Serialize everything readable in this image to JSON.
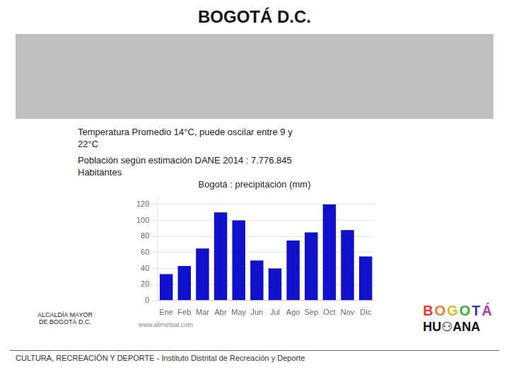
{
  "title": "BOGOTÁ D.C.",
  "annotations": [
    "Temperatura Promedio 14°C, puede oscilar entre 9 y",
    "22°C",
    "Población según estimación DANE 2014 : 7.776.845",
    "Habitantes",
    "ALCALDÍA MAYOR\nDE BOGOTÁ D.C.",
    "BOGOTÁ",
    "HU⚇ANA",
    "CULTURA, RECREACIÓN Y DEPORTE - Instituto Distrital de Recreación y Deporte"
  ],
  "chart_data": {
    "type": "bar",
    "title": "Bogotá : precipitación (mm)",
    "categories": [
      "Ene",
      "Feb",
      "Mar",
      "Abr",
      "May",
      "Jun",
      "Jul",
      "Ago",
      "Sep",
      "Oct",
      "Nov",
      "Dic"
    ],
    "values": [
      33,
      43,
      65,
      110,
      100,
      50,
      40,
      75,
      85,
      120,
      88,
      55
    ],
    "color": "#1111cc",
    "ylim": [
      0,
      130
    ],
    "yticks": [
      0,
      20,
      40,
      60,
      80,
      100,
      120
    ],
    "grid": true,
    "annotations": [
      "www.alimetsat.com"
    ]
  }
}
